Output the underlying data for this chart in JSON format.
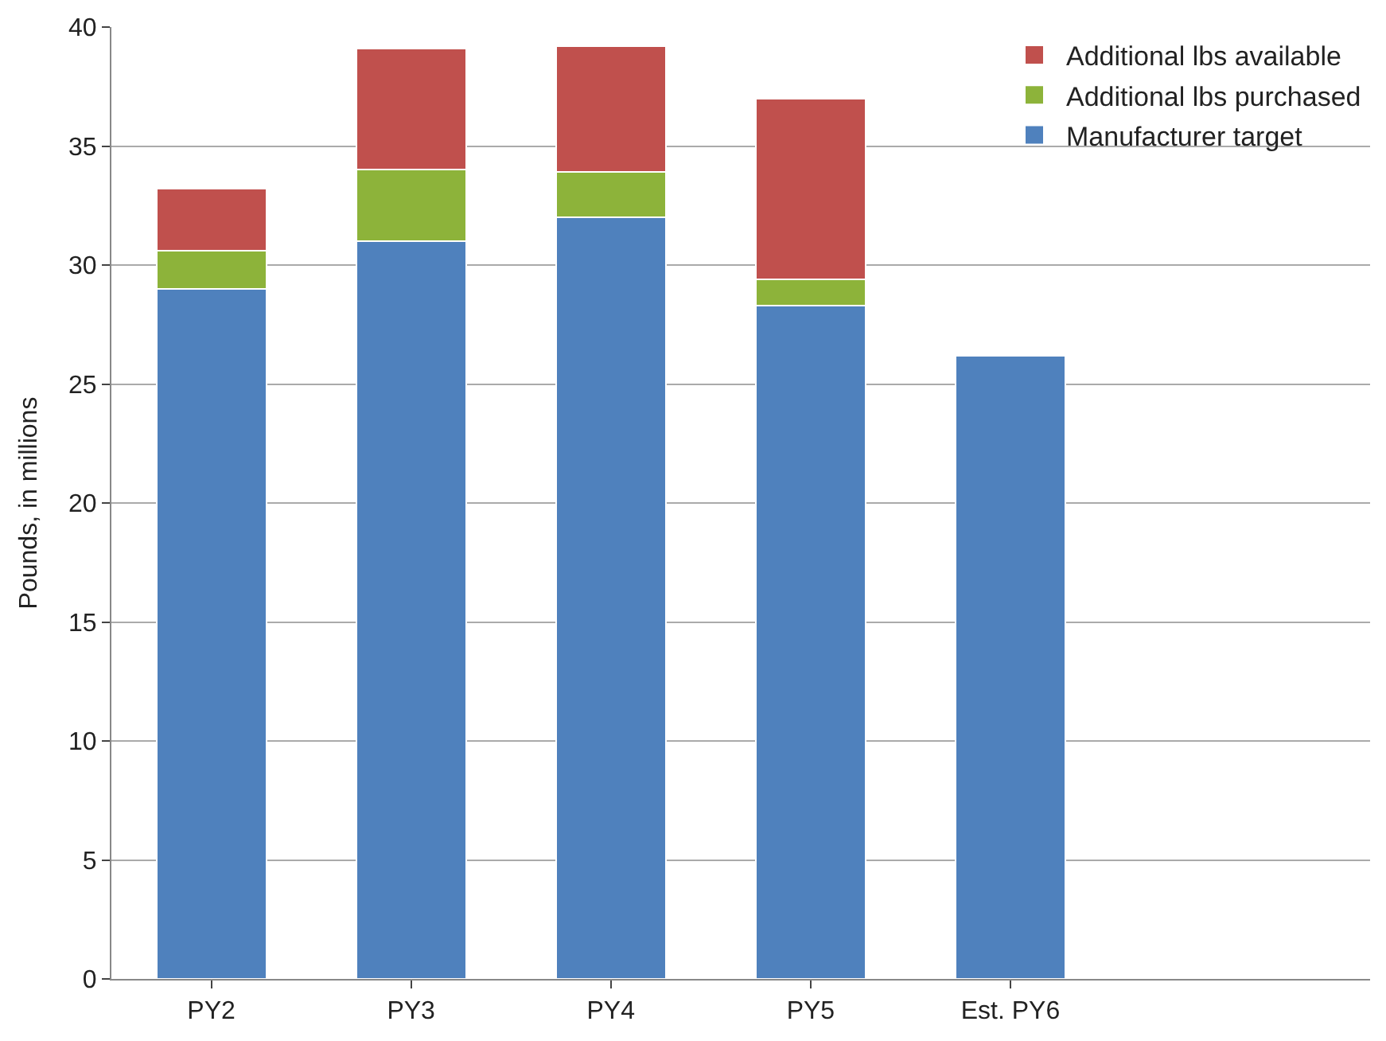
{
  "chart_data": {
    "type": "bar",
    "stacked": true,
    "ylabel": "Pounds, in millions",
    "categories": [
      "PY2",
      "PY3",
      "PY4",
      "PY5",
      "Est. PY6"
    ],
    "series": [
      {
        "name": "Manufacturer target",
        "color": "#4f81bd",
        "values": [
          29,
          31,
          32,
          28.3,
          26.2
        ]
      },
      {
        "name": "Additional lbs purchased",
        "color": "#8db33a",
        "values": [
          1.6,
          3,
          1.9,
          1.1,
          null
        ]
      },
      {
        "name": "Additional lbs available",
        "color": "#c0504d",
        "values": [
          2.6,
          5.1,
          5.3,
          7.6,
          null
        ]
      }
    ],
    "ylim": [
      0,
      40
    ],
    "yticks": [
      0,
      5,
      10,
      15,
      20,
      25,
      30,
      35,
      40
    ],
    "grid": "y",
    "legend": "top right"
  }
}
